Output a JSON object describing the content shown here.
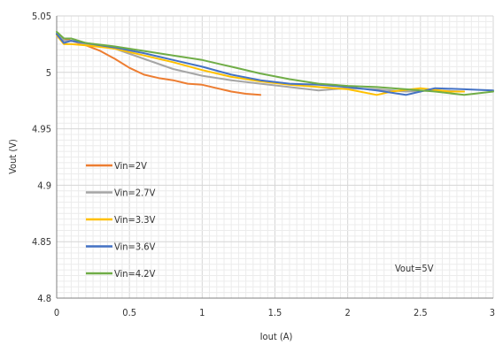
{
  "chart_data": {
    "type": "line",
    "xlabel": "Iout (A)",
    "ylabel": "Vout (V)",
    "xlim": [
      0,
      3
    ],
    "ylim": [
      4.8,
      5.05
    ],
    "xticks": [
      0,
      0.5,
      1,
      1.5,
      2,
      2.5,
      3
    ],
    "xtick_labels": [
      "0",
      "0.5",
      "1",
      "1.5",
      "2",
      "2.5",
      "3"
    ],
    "yticks": [
      4.8,
      4.85,
      4.9,
      4.95,
      5,
      5.05
    ],
    "ytick_labels": [
      "4.8",
      "4.85",
      "4.9",
      "4.95",
      "5",
      "5.05"
    ],
    "grid": true,
    "legend_position": "bottom-left",
    "annotation": "Vout=5V",
    "series": [
      {
        "name": "Vin=2V",
        "color": "#ED7D31",
        "points": [
          [
            0,
            5.034
          ],
          [
            0.05,
            5.03
          ],
          [
            0.1,
            5.028
          ],
          [
            0.2,
            5.024
          ],
          [
            0.3,
            5.019
          ],
          [
            0.4,
            5.012
          ],
          [
            0.5,
            5.004
          ],
          [
            0.6,
            4.998
          ],
          [
            0.7,
            4.995
          ],
          [
            0.8,
            4.993
          ],
          [
            0.9,
            4.99
          ],
          [
            1.0,
            4.989
          ],
          [
            1.1,
            4.986
          ],
          [
            1.2,
            4.983
          ],
          [
            1.3,
            4.981
          ],
          [
            1.4,
            4.98
          ]
        ]
      },
      {
        "name": "Vin=2.7V",
        "color": "#A5A5A5",
        "points": [
          [
            0,
            5.035
          ],
          [
            0.05,
            5.028
          ],
          [
            0.1,
            5.028
          ],
          [
            0.2,
            5.025
          ],
          [
            0.4,
            5.021
          ],
          [
            0.6,
            5.012
          ],
          [
            0.8,
            5.003
          ],
          [
            1.0,
            4.997
          ],
          [
            1.2,
            4.993
          ],
          [
            1.4,
            4.99
          ],
          [
            1.6,
            4.987
          ],
          [
            1.8,
            4.984
          ],
          [
            1.9,
            4.985
          ],
          [
            2.0,
            4.986
          ],
          [
            2.2,
            4.985
          ],
          [
            2.4,
            4.983
          ],
          [
            2.6,
            4.984
          ],
          [
            2.8,
            4.983
          ]
        ]
      },
      {
        "name": "Vin=3.3V",
        "color": "#FFC000",
        "points": [
          [
            0,
            5.033
          ],
          [
            0.05,
            5.025
          ],
          [
            0.1,
            5.025
          ],
          [
            0.2,
            5.024
          ],
          [
            0.4,
            5.021
          ],
          [
            0.6,
            5.015
          ],
          [
            0.8,
            5.009
          ],
          [
            1.0,
            5.002
          ],
          [
            1.2,
            4.996
          ],
          [
            1.4,
            4.992
          ],
          [
            1.6,
            4.989
          ],
          [
            1.8,
            4.987
          ],
          [
            2.0,
            4.985
          ],
          [
            2.2,
            4.98
          ],
          [
            2.3,
            4.983
          ],
          [
            2.5,
            4.986
          ],
          [
            2.7,
            4.983
          ],
          [
            2.8,
            4.983
          ]
        ]
      },
      {
        "name": "Vin=3.6V",
        "color": "#4472C4",
        "points": [
          [
            0,
            5.034
          ],
          [
            0.05,
            5.026
          ],
          [
            0.1,
            5.028
          ],
          [
            0.2,
            5.026
          ],
          [
            0.4,
            5.022
          ],
          [
            0.6,
            5.017
          ],
          [
            0.8,
            5.011
          ],
          [
            1.0,
            5.005
          ],
          [
            1.2,
            4.998
          ],
          [
            1.4,
            4.993
          ],
          [
            1.6,
            4.99
          ],
          [
            1.8,
            4.989
          ],
          [
            2.0,
            4.987
          ],
          [
            2.2,
            4.984
          ],
          [
            2.4,
            4.98
          ],
          [
            2.5,
            4.983
          ],
          [
            2.6,
            4.986
          ],
          [
            2.8,
            4.985
          ],
          [
            3.0,
            4.984
          ]
        ]
      },
      {
        "name": "Vin=4.2V",
        "color": "#70AD47",
        "points": [
          [
            0,
            5.036
          ],
          [
            0.05,
            5.03
          ],
          [
            0.1,
            5.03
          ],
          [
            0.2,
            5.026
          ],
          [
            0.4,
            5.023
          ],
          [
            0.6,
            5.019
          ],
          [
            0.8,
            5.015
          ],
          [
            1.0,
            5.011
          ],
          [
            1.2,
            5.005
          ],
          [
            1.4,
            4.999
          ],
          [
            1.6,
            4.994
          ],
          [
            1.8,
            4.99
          ],
          [
            2.0,
            4.988
          ],
          [
            2.2,
            4.987
          ],
          [
            2.4,
            4.985
          ],
          [
            2.6,
            4.983
          ],
          [
            2.8,
            4.98
          ],
          [
            3.0,
            4.983
          ]
        ]
      }
    ]
  }
}
